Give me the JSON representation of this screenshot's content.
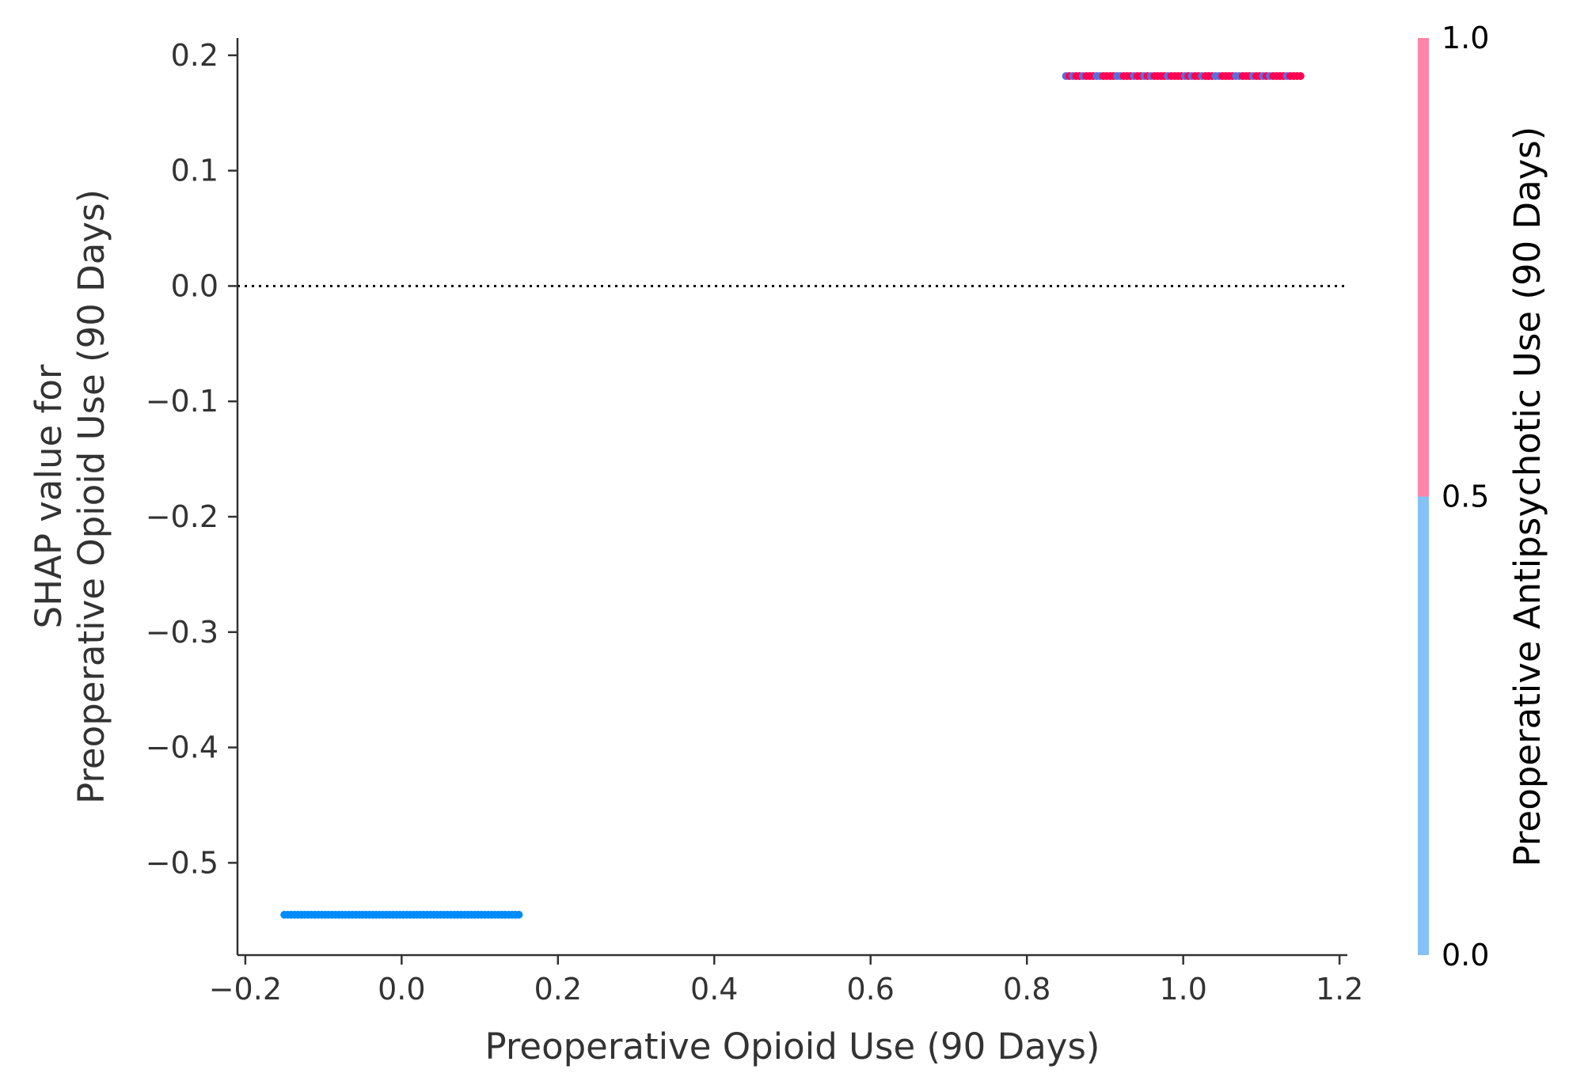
{
  "chart_data": {
    "type": "scatter",
    "title": "",
    "xlabel": "Preoperative Opioid Use (90 Days)",
    "ylabel_lines": [
      "SHAP value for",
      "Preoperative Opioid Use (90 Days)"
    ],
    "xlim": [
      -0.21,
      1.21
    ],
    "ylim": [
      -0.58,
      0.215
    ],
    "xticks": [
      -0.2,
      0.0,
      0.2,
      0.4,
      0.6,
      0.8,
      1.0,
      1.2
    ],
    "xtick_labels": [
      "−0.2",
      "0.0",
      "0.2",
      "0.4",
      "0.6",
      "0.8",
      "1.0",
      "1.2"
    ],
    "yticks": [
      0.2,
      0.1,
      0.0,
      -0.1,
      -0.2,
      -0.3,
      -0.4,
      -0.5
    ],
    "ytick_labels": [
      "0.2",
      "0.1",
      "0.0",
      "−0.1",
      "−0.2",
      "−0.3",
      "−0.4",
      "−0.5"
    ],
    "reference_line": {
      "y": 0.0,
      "style": "dotted"
    },
    "series": [
      {
        "x_range": [
          -0.15,
          0.15
        ],
        "y": -0.545,
        "color_value": 0.0
      },
      {
        "x_range": [
          0.85,
          1.15
        ],
        "y": 0.182,
        "color_value": "mixed 0.0 and 1.0"
      }
    ],
    "colorbar": {
      "label": "Preoperative Antipsychotic Use (90 Days)",
      "ticks": [
        0.0,
        0.5,
        1.0
      ],
      "tick_labels": [
        "0.0",
        "0.5",
        "1.0"
      ],
      "low_color": "#84c1f5",
      "high_color": "#ff86a8"
    },
    "colors": {
      "low_point": "#008bfb",
      "high_point": "#ff0052",
      "axis": "#333333"
    }
  }
}
